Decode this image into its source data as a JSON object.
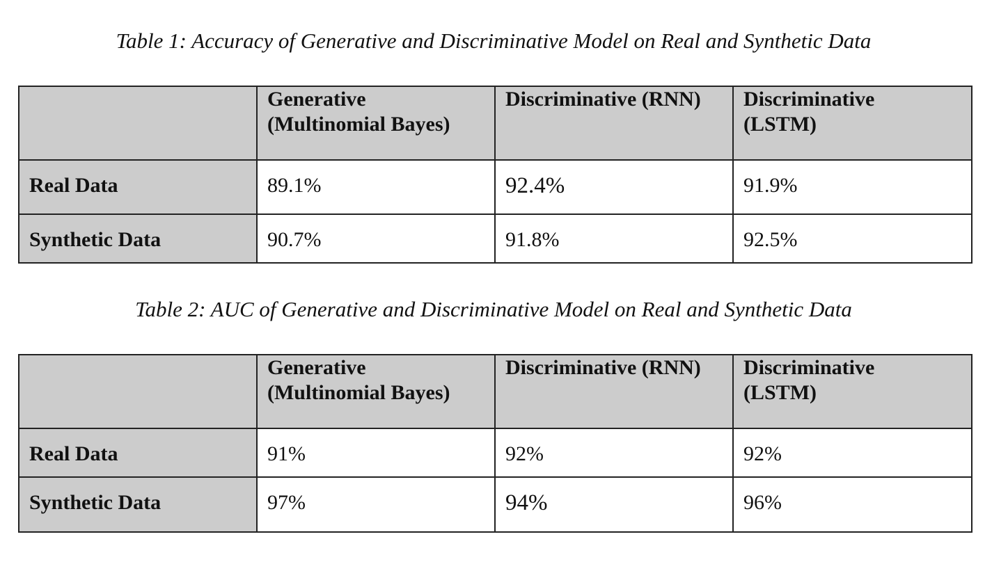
{
  "tables": [
    {
      "caption": "Table 1: Accuracy of Generative and Discriminative Model on Real and Synthetic Data",
      "columns": [
        "",
        "Generative\n(Multinomial Bayes)",
        "Discriminative (RNN)",
        "Discriminative\n(LSTM)"
      ],
      "column_lines": [
        [],
        [
          "Generative",
          "(Multinomial Bayes)"
        ],
        [
          "Discriminative (RNN)"
        ],
        [
          "Discriminative",
          "(LSTM)"
        ]
      ],
      "rows": [
        {
          "label": "Real Data",
          "values": [
            "89.1%",
            "92.4%",
            "91.9%"
          ]
        },
        {
          "label": "Synthetic Data",
          "values": [
            "90.7%",
            "91.8%",
            "92.5%"
          ]
        }
      ]
    },
    {
      "caption": "Table 2: AUC of Generative and Discriminative Model on Real and Synthetic Data",
      "columns": [
        "",
        "Generative\n(Multinomial Bayes)",
        "Discriminative (RNN)",
        "Discriminative\n(LSTM)"
      ],
      "column_lines": [
        [],
        [
          "Generative",
          "(Multinomial Bayes)"
        ],
        [
          "Discriminative (RNN)"
        ],
        [
          "Discriminative",
          "(LSTM)"
        ]
      ],
      "rows": [
        {
          "label": "Real Data",
          "values": [
            "91%",
            "92%",
            "92%"
          ]
        },
        {
          "label": "Synthetic Data",
          "values": [
            "97%",
            "94%",
            "96%"
          ]
        }
      ]
    }
  ],
  "colors": {
    "header_fill": "#cccccc",
    "border": "#222222",
    "background": "#ffffff"
  }
}
